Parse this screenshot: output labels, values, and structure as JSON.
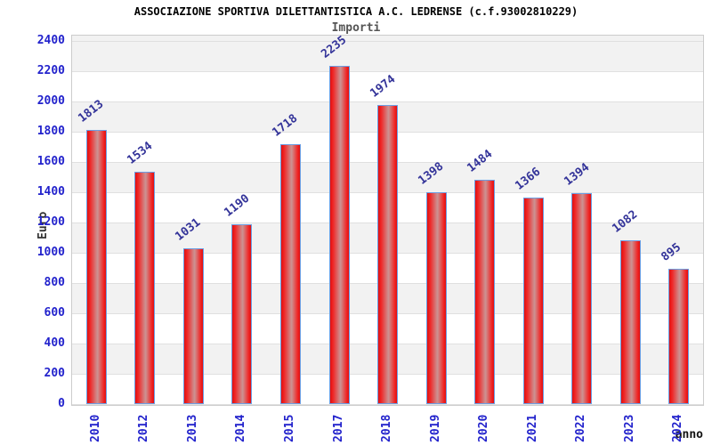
{
  "header": {
    "title": "ASSOCIAZIONE SPORTIVA DILETTANTISTICA A.C. LEDRENSE (c.f.93002810229)",
    "subtitle": "Importi"
  },
  "chart_data": {
    "type": "bar",
    "title": "ASSOCIAZIONE SPORTIVA DILETTANTISTICA A.C. LEDRENSE (c.f.93002810229)",
    "subtitle": "Importi",
    "categories": [
      "2010",
      "2012",
      "2013",
      "2014",
      "2015",
      "2017",
      "2018",
      "2019",
      "2020",
      "2021",
      "2022",
      "2023",
      "2024"
    ],
    "values": [
      1813,
      1534,
      1031,
      1190,
      1718,
      2235,
      1974,
      1398,
      1484,
      1366,
      1394,
      1082,
      895
    ],
    "xlabel": "anno",
    "ylabel": "Euro",
    "ylim": [
      0,
      2400
    ],
    "ytick_step": 200,
    "grid": true,
    "band_fill": "alternating-horizontal",
    "legend_position": "none",
    "bar_value_labels_rotated": true,
    "x_tick_labels_rotated": true
  },
  "colors": {
    "bar_edge_red": "#e01010",
    "bar_bright_red": "#f02525",
    "bar_center_light": "#cc9494",
    "bar_border_blue": "#6c9ee3",
    "tick_label_blue": "#2222cc",
    "value_label_blue": "#333399",
    "band_gray": "#f2f2f2",
    "gridline_gray": "#e0e0e0",
    "plot_border_gray": "#cccccc",
    "title_black": "#000000",
    "subtitle_gray": "#555555",
    "axis_title_dark": "#333333"
  }
}
